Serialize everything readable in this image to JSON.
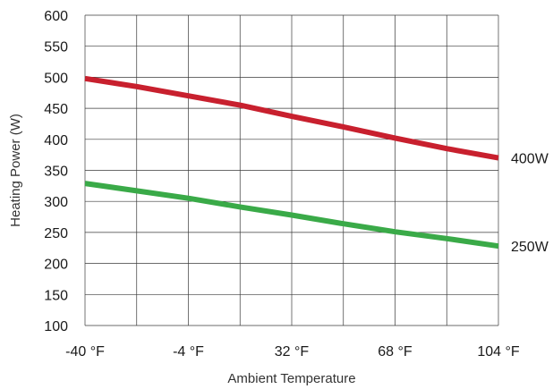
{
  "chart_data": {
    "type": "line",
    "title": "",
    "xlabel": "Ambient Temperature",
    "ylabel": "Heating Power (W)",
    "x_tick_labels": [
      "-40 °F",
      "-4 °F",
      "32 °F",
      "68 °F",
      "104 °F"
    ],
    "x_ticks": [
      -40,
      -4,
      32,
      68,
      104
    ],
    "xlim": [
      -40,
      104
    ],
    "y_ticks": [
      100,
      150,
      200,
      250,
      300,
      350,
      400,
      450,
      500,
      550,
      600
    ],
    "ylim": [
      100,
      600
    ],
    "grid": true,
    "legend": "inline-right",
    "series": [
      {
        "name": "400W",
        "color": "#c8202e",
        "x": [
          -40,
          -22,
          -4,
          14,
          32,
          50,
          68,
          86,
          104
        ],
        "y": [
          498,
          485,
          470,
          455,
          437,
          420,
          402,
          385,
          370
        ]
      },
      {
        "name": "250W",
        "color": "#3aaa48",
        "x": [
          -40,
          -22,
          -4,
          14,
          32,
          50,
          68,
          86,
          104
        ],
        "y": [
          329,
          317,
          305,
          291,
          278,
          264,
          251,
          240,
          228
        ]
      }
    ]
  }
}
